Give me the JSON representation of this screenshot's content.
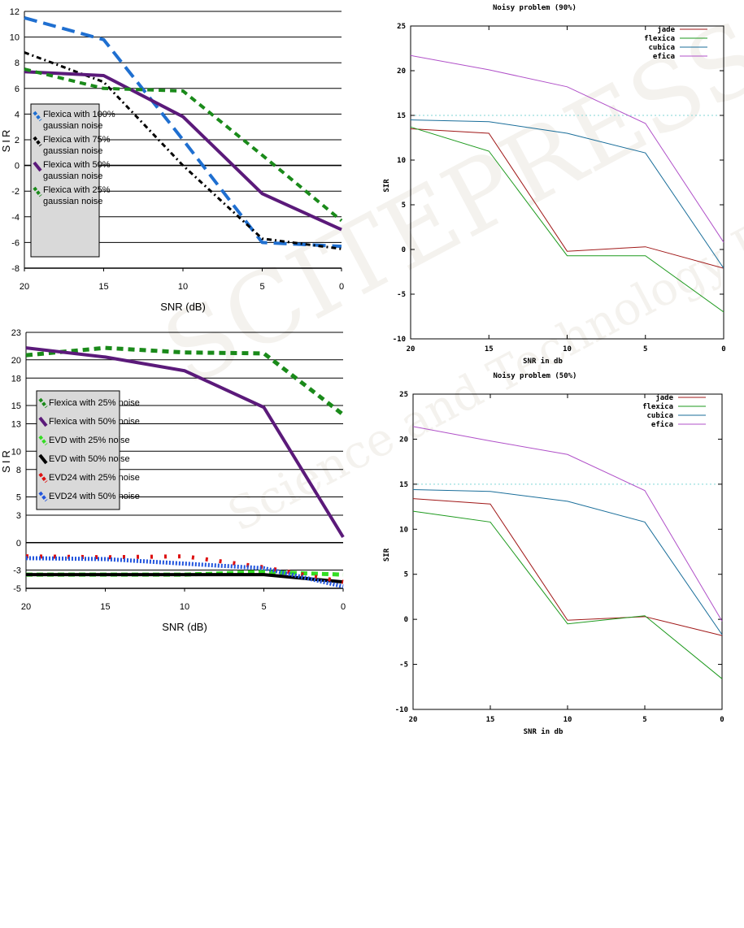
{
  "watermark": {
    "main": "SCITEPRESS",
    "sub": "Science and Technology Publications"
  },
  "chart_data": [
    {
      "type": "line",
      "title": "",
      "xlabel": "SNR (dB)",
      "ylabel": "SIR",
      "x": [
        20,
        15,
        10,
        5,
        0
      ],
      "xlim": [
        20,
        0
      ],
      "ylim": [
        -8,
        12
      ],
      "yticks": [
        -8,
        -6,
        -4,
        -2,
        0,
        2,
        4,
        6,
        8,
        10,
        12
      ],
      "xticks": [
        20,
        15,
        10,
        5,
        0
      ],
      "grid": "horizontal",
      "legend_position": "left-middle",
      "series": [
        {
          "name": "Flexica with 100% gaussian noise",
          "color": "#1f6fd0",
          "dash": "16,8",
          "width": 4,
          "x": [
            20,
            15,
            10,
            5,
            0
          ],
          "values": [
            11.5,
            9.8,
            2.0,
            -6.0,
            -6.3
          ]
        },
        {
          "name": "Flexica with 75% gaussian noise",
          "color": "#000000",
          "dash": "6,4,2,4",
          "width": 3,
          "x": [
            20,
            15,
            10,
            5,
            0
          ],
          "values": [
            8.8,
            6.5,
            0.0,
            -5.7,
            -6.5
          ]
        },
        {
          "name": "Flexica with 50% gaussian noise",
          "color": "#5b1a7a",
          "dash": "",
          "width": 4,
          "x": [
            20,
            15,
            10,
            5,
            0
          ],
          "values": [
            7.3,
            7.0,
            3.8,
            -2.2,
            -5.0
          ]
        },
        {
          "name": "Flexica with 25% gaussian noise",
          "color": "#1a8a1a",
          "dash": "8,6",
          "width": 4,
          "x": [
            20,
            15,
            10,
            5,
            0
          ],
          "values": [
            7.5,
            6.0,
            5.8,
            0.8,
            -4.3
          ]
        }
      ]
    },
    {
      "type": "line",
      "title": "",
      "xlabel": "SNR (dB)",
      "ylabel": "SIR",
      "xlim": [
        20,
        0
      ],
      "ylim": [
        -5,
        23
      ],
      "yticks": [
        -5,
        -3,
        0,
        3,
        5,
        8,
        10,
        13,
        15,
        18,
        20,
        23
      ],
      "xticks": [
        20,
        15,
        10,
        5,
        0
      ],
      "grid": "horizontal",
      "legend_position": "left-middle",
      "series": [
        {
          "name": "Flexica with 25% noise",
          "color": "#1a8a1a",
          "dash": "8,6",
          "width": 5,
          "x": [
            20,
            15,
            10,
            5,
            0
          ],
          "values": [
            20.5,
            21.3,
            20.8,
            20.7,
            14.0
          ]
        },
        {
          "name": "Flexica with 50% noise",
          "color": "#5b1a7a",
          "dash": "",
          "width": 4,
          "x": [
            20,
            15,
            10,
            5,
            0
          ],
          "values": [
            21.3,
            20.3,
            18.8,
            14.8,
            0.6
          ]
        },
        {
          "name": "EVD with 25% noise",
          "color": "#33dd22",
          "dash": "8,5",
          "width": 5,
          "x": [
            20,
            15,
            10,
            5,
            0
          ],
          "values": [
            -3.5,
            -3.5,
            -3.5,
            -3.2,
            -3.5
          ]
        },
        {
          "name": "EVD with 50% noise",
          "color": "#000000",
          "dash": "",
          "width": 4,
          "x": [
            20,
            15,
            10,
            5,
            0
          ],
          "values": [
            -3.5,
            -3.5,
            -3.5,
            -3.5,
            -4.3
          ]
        },
        {
          "name": "EVD24 with 25% noise",
          "color": "#dd1111",
          "dash": "3,14",
          "width": 5,
          "x": [
            20,
            15,
            10,
            5,
            0
          ],
          "values": [
            -1.5,
            -1.6,
            -1.5,
            -2.7,
            -4.3
          ]
        },
        {
          "name": "EVD24 with 50% noise",
          "color": "#2255dd",
          "dash": "2,2",
          "width": 5,
          "x": [
            20,
            15,
            10,
            5,
            0
          ],
          "values": [
            -1.7,
            -1.8,
            -2.3,
            -2.8,
            -4.8
          ]
        }
      ]
    },
    {
      "type": "line",
      "title": "Noisy problem (90%)",
      "xlabel": "SNR in db",
      "ylabel": "SIR",
      "xlim": [
        20,
        0
      ],
      "ylim": [
        -10,
        25
      ],
      "yticks": [
        -10,
        -5,
        0,
        5,
        10,
        15,
        20,
        25
      ],
      "xticks": [
        20,
        15,
        10,
        5,
        0
      ],
      "grid": "dotted line at 15",
      "legend_position": "top-right",
      "series": [
        {
          "name": "jade",
          "color": "#a01818",
          "x": [
            20,
            15,
            10,
            5,
            0
          ],
          "values": [
            13.5,
            13.0,
            -0.2,
            0.3,
            -2.1
          ]
        },
        {
          "name": "flexica",
          "color": "#1e9a1e",
          "x": [
            20,
            15,
            10,
            5,
            0
          ],
          "values": [
            13.7,
            11.0,
            -0.7,
            -0.7,
            -7.0
          ]
        },
        {
          "name": "cubica",
          "color": "#1a6e9a",
          "x": [
            20,
            15,
            10,
            5,
            0
          ],
          "values": [
            14.5,
            14.3,
            13.0,
            10.8,
            -2.1
          ]
        },
        {
          "name": "efica",
          "color": "#b050c8",
          "x": [
            20,
            15,
            10,
            5,
            0
          ],
          "values": [
            21.7,
            20.1,
            18.2,
            14.1,
            0.8
          ]
        }
      ]
    },
    {
      "type": "line",
      "title": "Noisy problem (50%)",
      "xlabel": "SNR in db",
      "ylabel": "SIR",
      "xlim": [
        20,
        0
      ],
      "ylim": [
        -10,
        25
      ],
      "yticks": [
        -10,
        -5,
        0,
        5,
        10,
        15,
        20,
        25
      ],
      "xticks": [
        20,
        15,
        10,
        5,
        0
      ],
      "grid": "dotted line at 15",
      "legend_position": "top-right",
      "series": [
        {
          "name": "jade",
          "color": "#a01818",
          "x": [
            20,
            15,
            10,
            5,
            0
          ],
          "values": [
            13.4,
            12.8,
            -0.1,
            0.3,
            -1.8
          ]
        },
        {
          "name": "flexica",
          "color": "#1e9a1e",
          "x": [
            20,
            15,
            10,
            5,
            0
          ],
          "values": [
            12.0,
            10.8,
            -0.5,
            0.4,
            -6.6
          ]
        },
        {
          "name": "cubica",
          "color": "#1a6e9a",
          "x": [
            20,
            15,
            10,
            5,
            0
          ],
          "values": [
            14.4,
            14.2,
            13.1,
            10.8,
            -1.7
          ]
        },
        {
          "name": "efica",
          "color": "#b050c8",
          "x": [
            20,
            15,
            10,
            5,
            0
          ],
          "values": [
            21.4,
            19.8,
            18.3,
            14.3,
            -0.2
          ]
        }
      ]
    }
  ]
}
